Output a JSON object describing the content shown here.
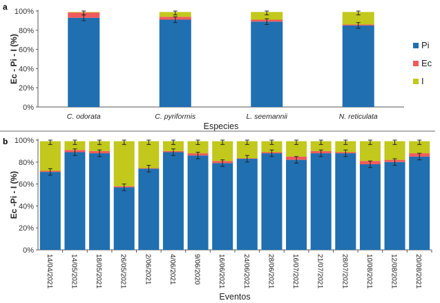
{
  "colors": {
    "Pi": "#1f6fb1",
    "Ec": "#ef5b5b",
    "I": "#c2c81c",
    "axis": "#555555",
    "err": "#222222"
  },
  "chart_data": [
    {
      "panel": "a",
      "type": "bar",
      "stacked": true,
      "categories": [
        "C. odorata",
        "C. pyriformis",
        "L. seemannii",
        "N. reticulata"
      ],
      "series": [
        {
          "name": "Pi",
          "values": [
            93,
            91,
            89,
            85
          ]
        },
        {
          "name": "Ec",
          "values": [
            5.5,
            3,
            2,
            1
          ]
        },
        {
          "name": "I",
          "values": [
            0.5,
            5,
            8,
            13
          ]
        }
      ],
      "error": [
        3,
        3,
        3,
        3
      ],
      "xlabel": "Especies",
      "ylabel": "Ec - Pi - I (%)",
      "ylim": [
        0,
        100
      ],
      "yticks": [
        "0%",
        "20%",
        "40%",
        "60%",
        "80%",
        "100%"
      ],
      "legend": "right",
      "grid": false
    },
    {
      "panel": "b",
      "type": "bar",
      "stacked": true,
      "categories": [
        "14/04/2021",
        "14/05/2021",
        "18/05/2021",
        "26/05/2021",
        "2/06/2021",
        "4/06/2021",
        "9/06/2020",
        "16/06/2021",
        "24/06/2021",
        "28/06/2021",
        "16/07/2021",
        "21/07/2021",
        "28/07/2021",
        "10/08/2021",
        "12/08/2021",
        "20/08/2021"
      ],
      "series": [
        {
          "name": "Pi",
          "values": [
            71,
            89,
            88,
            57,
            74,
            89,
            86,
            79,
            83,
            88,
            82,
            88,
            88,
            78,
            80,
            85
          ]
        },
        {
          "name": "Ec",
          "values": [
            1,
            2,
            2,
            1,
            0.5,
            1,
            2,
            2,
            0.5,
            1,
            3,
            2,
            1,
            3,
            2,
            3
          ]
        },
        {
          "name": "I",
          "values": [
            27,
            8,
            9,
            41,
            24.5,
            9,
            11,
            18,
            15.5,
            10,
            14,
            9,
            10,
            18,
            17,
            11
          ]
        }
      ],
      "error": [
        3,
        3,
        3,
        3,
        3,
        3,
        3,
        3,
        3,
        3,
        3,
        3,
        3,
        3,
        3,
        3
      ],
      "xlabel": "Eventos",
      "ylabel": "Ec -Pi - I (%)",
      "ylim": [
        0,
        100
      ],
      "yticks": [
        "0%",
        "20%",
        "40%",
        "60%",
        "80%",
        "100%"
      ],
      "legend": "none",
      "grid": false
    }
  ]
}
